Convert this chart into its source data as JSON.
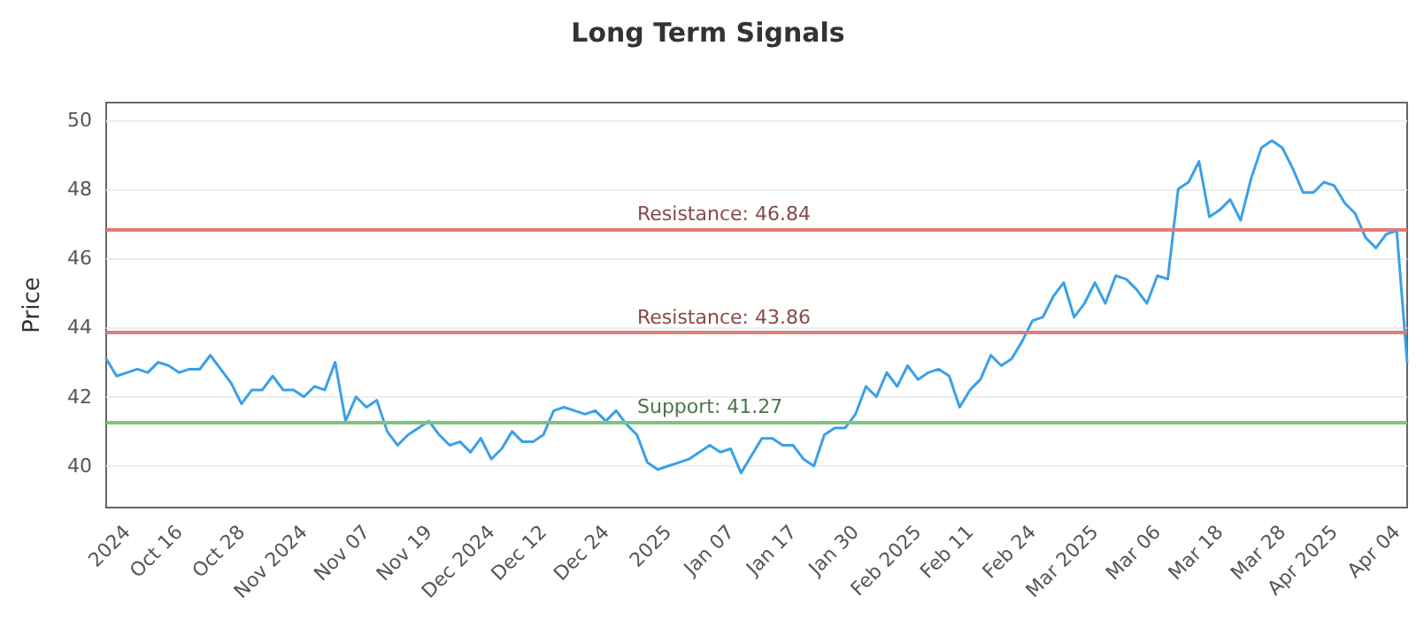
{
  "chart_data": {
    "type": "line",
    "title": "Long Term Signals",
    "ylabel": "Price",
    "categories": [
      null,
      null,
      "2024",
      null,
      null,
      null,
      null,
      "Oct 16",
      null,
      null,
      null,
      null,
      null,
      "Oct 28",
      null,
      null,
      null,
      null,
      null,
      "Nov 2024",
      null,
      null,
      null,
      null,
      null,
      "Nov 07",
      null,
      null,
      null,
      null,
      null,
      "Nov 19",
      null,
      null,
      null,
      null,
      null,
      "Dec 2024",
      null,
      null,
      null,
      null,
      "Dec 12",
      null,
      null,
      null,
      null,
      null,
      "Dec 24",
      null,
      null,
      null,
      null,
      null,
      "2025",
      null,
      null,
      null,
      null,
      null,
      "Jan 07",
      null,
      null,
      null,
      null,
      null,
      "Jan 17",
      null,
      null,
      null,
      null,
      null,
      "Jan 30",
      null,
      null,
      null,
      null,
      null,
      "Feb 2025",
      null,
      null,
      null,
      null,
      "Feb 11",
      null,
      null,
      null,
      null,
      null,
      "Feb 24",
      null,
      null,
      null,
      null,
      null,
      "Mar 2025",
      null,
      null,
      null,
      null,
      null,
      "Mar 06",
      null,
      null,
      null,
      null,
      null,
      "Mar 18",
      null,
      null,
      null,
      null,
      null,
      "Mar 28",
      null,
      null,
      null,
      null,
      "Apr 2025",
      null,
      null,
      null,
      null,
      null,
      "Apr 04",
      null
    ],
    "series": [
      {
        "color": "#3aa0e8",
        "values": [
          43.1,
          42.6,
          42.7,
          42.8,
          42.7,
          43.0,
          42.9,
          42.7,
          42.8,
          42.8,
          43.2,
          42.8,
          42.4,
          41.8,
          42.2,
          42.2,
          42.6,
          42.2,
          42.2,
          42.0,
          42.3,
          42.2,
          43.0,
          41.3,
          42.0,
          41.7,
          41.9,
          41.0,
          40.6,
          40.9,
          41.1,
          41.3,
          40.9,
          40.6,
          40.7,
          40.4,
          40.8,
          40.2,
          40.5,
          41.0,
          40.7,
          40.7,
          40.9,
          41.6,
          41.7,
          41.6,
          41.5,
          41.6,
          41.3,
          41.6,
          41.2,
          40.9,
          40.1,
          39.9,
          40.0,
          40.1,
          40.2,
          40.4,
          40.6,
          40.4,
          40.5,
          39.8,
          40.3,
          40.8,
          40.8,
          40.6,
          40.6,
          40.2,
          40.0,
          40.9,
          41.1,
          41.1,
          41.5,
          42.3,
          42.0,
          42.7,
          42.3,
          42.9,
          42.5,
          42.7,
          42.8,
          42.6,
          41.7,
          42.2,
          42.5,
          43.2,
          42.9,
          43.1,
          43.6,
          44.2,
          44.3,
          44.9,
          45.3,
          44.3,
          44.7,
          45.3,
          44.7,
          45.5,
          45.4,
          45.1,
          44.7,
          45.5,
          45.4,
          48.0,
          48.2,
          48.8,
          47.2,
          47.4,
          47.7,
          47.1,
          48.3,
          49.2,
          49.4,
          49.2,
          48.6,
          47.9,
          47.9,
          48.2,
          48.1,
          47.6,
          47.3,
          46.6,
          46.3,
          46.7,
          46.8,
          43.0
        ]
      }
    ],
    "ylim": [
      38.8,
      50.5
    ],
    "yticks": [
      40,
      42,
      44,
      46,
      48,
      50
    ],
    "grid": "y",
    "marker": "none",
    "line_style": "solid",
    "ref_lines": [
      {
        "axis": "y",
        "value": 46.84,
        "label": "Resistance: 46.84",
        "color": "#e07b7b"
      },
      {
        "axis": "y",
        "value": 43.86,
        "label": "Resistance: 43.86",
        "color": "#e07b7b"
      },
      {
        "axis": "y",
        "value": 41.27,
        "label": "Support: 41.27",
        "color": "#7cc47c"
      }
    ]
  }
}
